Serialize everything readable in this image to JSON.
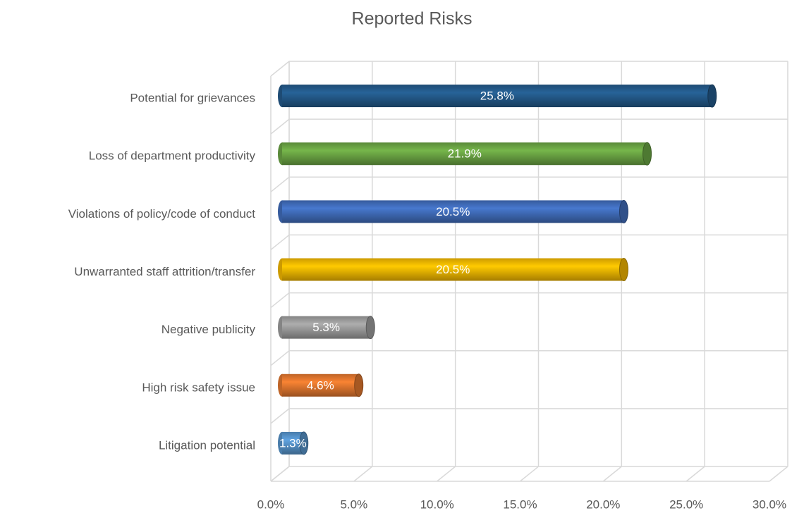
{
  "chart_data": {
    "type": "bar3d_horizontal",
    "title": "Reported Risks",
    "categories": [
      "Potential for grievances",
      "Loss of department productivity",
      "Violations of policy/code of conduct",
      "Unwarranted staff attrition/transfer",
      "Negative publicity",
      "High risk safety issue",
      "Litigation potential"
    ],
    "values": [
      25.8,
      21.9,
      20.5,
      20.5,
      5.3,
      4.6,
      1.3
    ],
    "value_labels": [
      "25.8%",
      "21.9%",
      "20.5%",
      "20.5%",
      "5.3%",
      "4.6%",
      "1.3%"
    ],
    "colors": [
      "#255e91",
      "#70ad47",
      "#4472c4",
      "#ffc000",
      "#a5a5a5",
      "#ed7d31",
      "#5b9bd5"
    ],
    "xlim": [
      0,
      30
    ],
    "xticks": [
      {
        "value": 0,
        "label": "0.0%"
      },
      {
        "value": 5,
        "label": "5.0%"
      },
      {
        "value": 10,
        "label": "10.0%"
      },
      {
        "value": 15,
        "label": "15.0%"
      },
      {
        "value": 20,
        "label": "20.0%"
      },
      {
        "value": 25,
        "label": "25.0%"
      },
      {
        "value": 30,
        "label": "30.0%"
      }
    ],
    "grid": true
  }
}
